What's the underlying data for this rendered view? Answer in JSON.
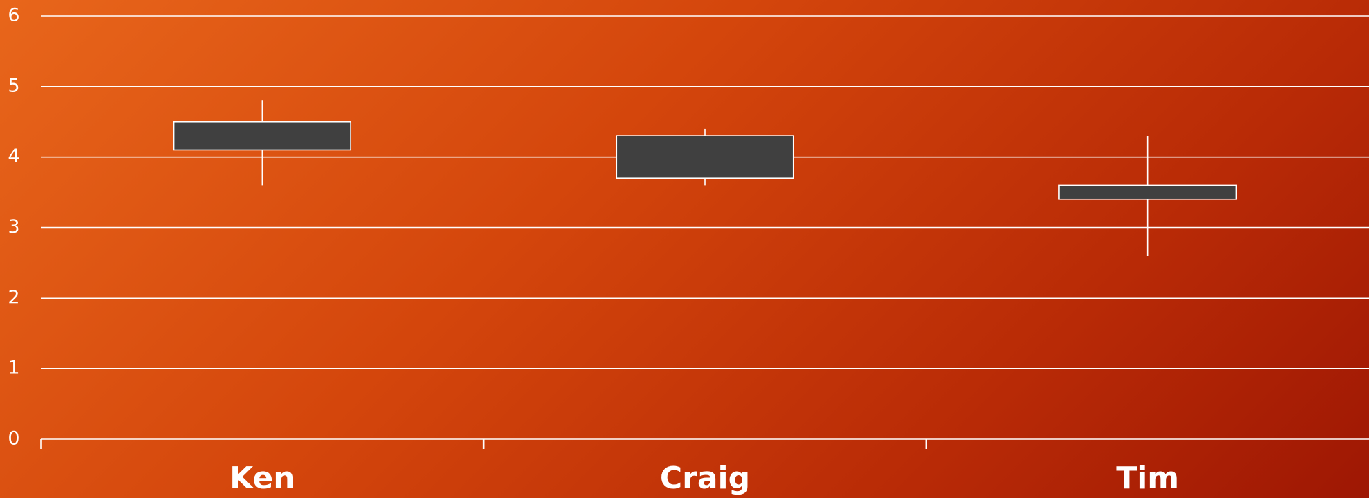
{
  "chart_data": {
    "type": "candlestick",
    "categories": [
      "Ken",
      "Craig",
      "Tim"
    ],
    "open": [
      4.5,
      4.3,
      3.6
    ],
    "high": [
      4.8,
      4.4,
      4.3
    ],
    "low": [
      3.6,
      3.6,
      2.6
    ],
    "close": [
      4.1,
      3.7,
      3.4
    ],
    "color": "#404040",
    "ylim": [
      0,
      6
    ],
    "yticks": [
      0,
      1,
      2,
      3,
      4,
      5,
      6
    ],
    "grid": true
  }
}
